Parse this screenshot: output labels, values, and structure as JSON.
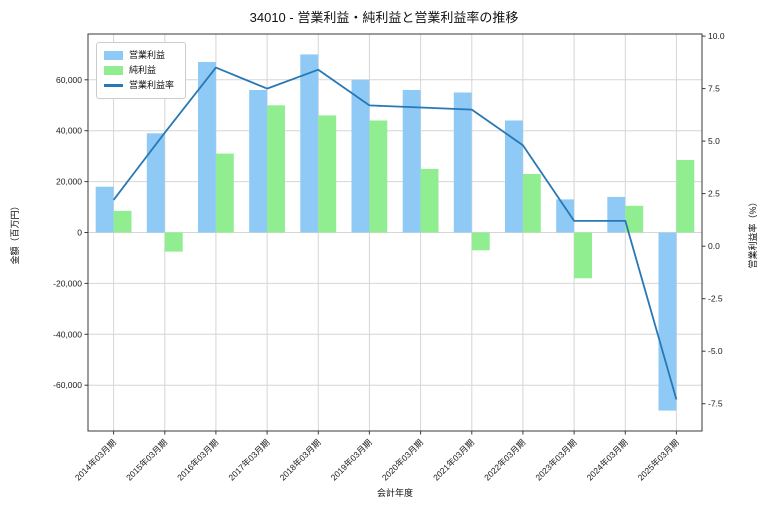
{
  "chart_data": {
    "type": "bar",
    "title": "34010 - 営業利益・純利益と営業利益率の推移",
    "xlabel": "会計年度",
    "ylabel_left": "金額（百万円）",
    "ylabel_right": "営業利益率（%）",
    "categories": [
      "2014年03月期",
      "2015年03月期",
      "2016年03月期",
      "2017年03月期",
      "2018年03月期",
      "2019年03月期",
      "2020年03月期",
      "2021年03月期",
      "2022年03月期",
      "2023年03月期",
      "2024年03月期",
      "2025年03月期"
    ],
    "series": [
      {
        "name": "営業利益",
        "type": "bar",
        "axis": "left",
        "color": "#8ecaf5",
        "values": [
          18000,
          39000,
          67000,
          56000,
          70000,
          60000,
          56000,
          55000,
          44000,
          13000,
          14000,
          -70000
        ]
      },
      {
        "name": "純利益",
        "type": "bar",
        "axis": "left",
        "color": "#90ee90",
        "values": [
          8500,
          -7500,
          31000,
          50000,
          46000,
          44000,
          25000,
          -7000,
          23000,
          -18000,
          10500,
          28500
        ]
      },
      {
        "name": "営業利益率",
        "type": "line",
        "axis": "right",
        "color": "#2878b5",
        "values": [
          2.2,
          5.4,
          8.5,
          7.5,
          8.4,
          6.7,
          6.6,
          6.5,
          4.8,
          1.2,
          1.2,
          -7.3
        ]
      }
    ],
    "ylim_left": [
      -78000,
      78000
    ],
    "ylim_right": [
      -8.8,
      10.1
    ],
    "yticks_left": {
      "values": [
        60000,
        40000,
        20000,
        0,
        -20000,
        -40000,
        -60000
      ],
      "labels": [
        "60,000",
        "40,000",
        "20,000",
        "0",
        "-20,000",
        "-40,000",
        "-60,000"
      ]
    },
    "yticks_right": {
      "values": [
        10.0,
        7.5,
        5.0,
        2.5,
        0.0,
        -2.5,
        -5.0,
        -7.5
      ],
      "labels": [
        "10.0",
        "7.5",
        "5.0",
        "2.5",
        "0.0",
        "-2.5",
        "-5.0",
        "-7.5"
      ]
    },
    "grid": true,
    "legend_position": "upper-left",
    "colors": {
      "grid": "#d6d6d6",
      "spine": "#3a3a3a",
      "tick_text": "#1a1a1a",
      "background": "#ffffff"
    }
  }
}
